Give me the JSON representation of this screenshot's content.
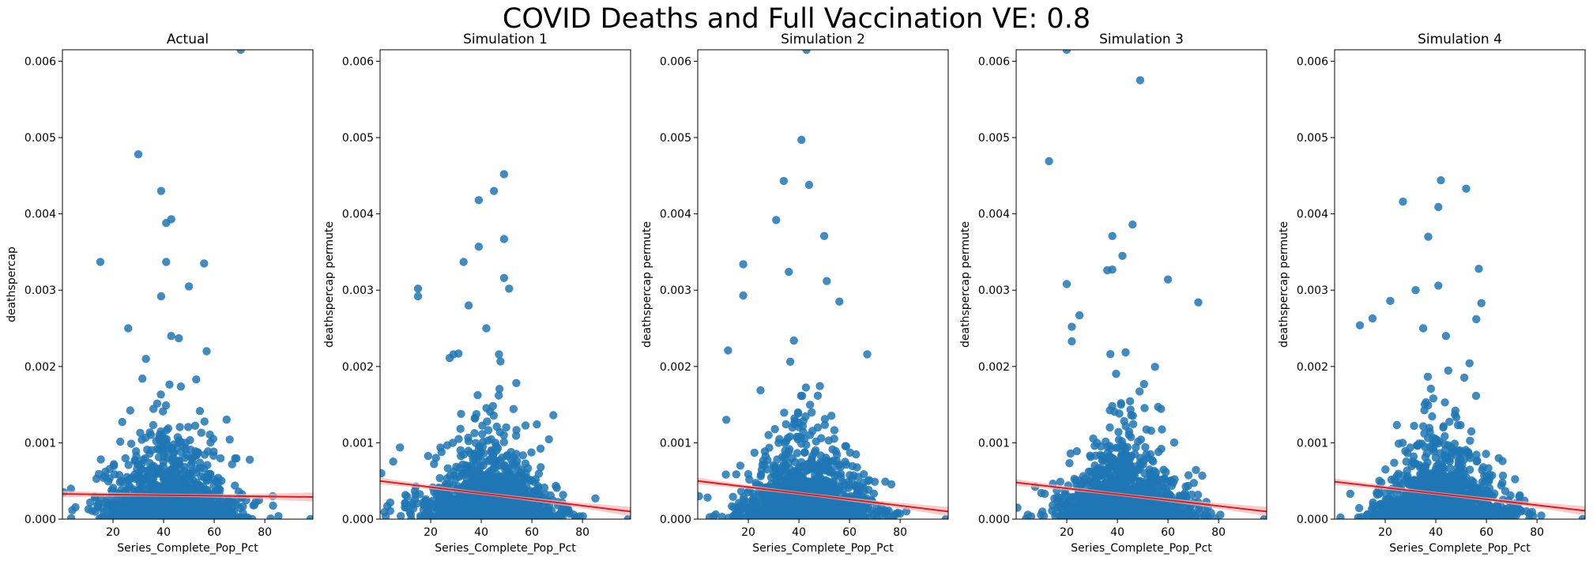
{
  "suptitle": "COVID Deaths and Full Vaccination VE: 0.8",
  "colors": {
    "points": "#1f77b4",
    "regression": "#e31a1c",
    "ci_band": "#f4b6b6"
  },
  "chart_data": [
    {
      "type": "scatter",
      "title": "Actual",
      "xlabel": "Series_Complete_Pop_Pct",
      "ylabel": "deathspercap",
      "xlim": [
        0,
        99
      ],
      "ylim": [
        0,
        0.00615
      ],
      "xticks": [
        20,
        40,
        60,
        80
      ],
      "yticks": [
        "0.000",
        "0.001",
        "0.002",
        "0.003",
        "0.004",
        "0.005",
        "0.006"
      ],
      "regression": {
        "x": [
          0,
          99
        ],
        "y": [
          0.00033,
          0.00029
        ]
      },
      "outliers": [
        [
          70.5,
          0.00615
        ],
        [
          30,
          0.00478
        ],
        [
          39,
          0.0043
        ],
        [
          43,
          0.00393
        ],
        [
          41,
          0.00388
        ],
        [
          41,
          0.00337
        ],
        [
          15,
          0.00337
        ],
        [
          56,
          0.00335
        ],
        [
          50,
          0.00305
        ],
        [
          39,
          0.00292
        ],
        [
          26,
          0.0025
        ],
        [
          43,
          0.0024
        ],
        [
          46,
          0.00237
        ],
        [
          57,
          0.0022
        ],
        [
          33,
          0.0021
        ],
        [
          0.5,
          0.00035
        ],
        [
          98,
          0.0
        ]
      ],
      "cloud": {
        "x_mean": 43,
        "x_sd": 13,
        "y_scale": 0.00038,
        "n": 1150,
        "seed": 11
      }
    },
    {
      "type": "scatter",
      "title": "Simulation 1",
      "xlabel": "Series_Complete_Pop_Pct",
      "ylabel": "deathspercap permute",
      "xlim": [
        0,
        99
      ],
      "ylim": [
        0,
        0.00615
      ],
      "xticks": [
        20,
        40,
        60,
        80
      ],
      "yticks": [
        "0.000",
        "0.001",
        "0.002",
        "0.003",
        "0.004",
        "0.005",
        "0.006"
      ],
      "regression": {
        "x": [
          0,
          99
        ],
        "y": [
          0.0005,
          0.0001
        ]
      },
      "outliers": [
        [
          49,
          0.00452
        ],
        [
          45,
          0.0043
        ],
        [
          39,
          0.00418
        ],
        [
          49,
          0.00367
        ],
        [
          39,
          0.00357
        ],
        [
          33,
          0.00337
        ],
        [
          15,
          0.00302
        ],
        [
          15,
          0.00292
        ],
        [
          49,
          0.00316
        ],
        [
          51,
          0.00302
        ],
        [
          35,
          0.0028
        ],
        [
          42,
          0.0025
        ],
        [
          29,
          0.00216
        ],
        [
          47,
          0.00216
        ],
        [
          31,
          0.00217
        ],
        [
          0.5,
          0.0006
        ],
        [
          98,
          0.0
        ]
      ],
      "cloud": {
        "x_mean": 43,
        "x_sd": 13,
        "y_scale": 0.00038,
        "n": 1150,
        "seed": 23
      }
    },
    {
      "type": "scatter",
      "title": "Simulation 2",
      "xlabel": "Series_Complete_Pop_Pct",
      "ylabel": "deathspercap permute",
      "xlim": [
        0,
        99
      ],
      "ylim": [
        0,
        0.00615
      ],
      "xticks": [
        20,
        40,
        60,
        80
      ],
      "yticks": [
        "0.000",
        "0.001",
        "0.002",
        "0.003",
        "0.004",
        "0.005",
        "0.006"
      ],
      "regression": {
        "x": [
          0,
          99
        ],
        "y": [
          0.0005,
          0.0001
        ]
      },
      "outliers": [
        [
          43,
          0.00615
        ],
        [
          41,
          0.00497
        ],
        [
          34,
          0.00443
        ],
        [
          44,
          0.00438
        ],
        [
          31,
          0.00392
        ],
        [
          50,
          0.00371
        ],
        [
          36,
          0.00324
        ],
        [
          18,
          0.00334
        ],
        [
          51,
          0.00312
        ],
        [
          18,
          0.00293
        ],
        [
          56,
          0.00285
        ],
        [
          38,
          0.00234
        ],
        [
          12,
          0.00221
        ],
        [
          67,
          0.00216
        ],
        [
          0.5,
          0.0003
        ],
        [
          98,
          0.0
        ]
      ],
      "cloud": {
        "x_mean": 43,
        "x_sd": 13,
        "y_scale": 0.00038,
        "n": 1150,
        "seed": 37
      }
    },
    {
      "type": "scatter",
      "title": "Simulation 3",
      "xlabel": "Series_Complete_Pop_Pct",
      "ylabel": "deathspercap permute",
      "xlim": [
        0,
        99
      ],
      "ylim": [
        0,
        0.00615
      ],
      "xticks": [
        20,
        40,
        60,
        80
      ],
      "yticks": [
        "0.000",
        "0.001",
        "0.002",
        "0.003",
        "0.004",
        "0.005",
        "0.006"
      ],
      "regression": {
        "x": [
          0,
          99
        ],
        "y": [
          0.00048,
          0.0001
        ]
      },
      "outliers": [
        [
          20,
          0.00615
        ],
        [
          49,
          0.00575
        ],
        [
          13,
          0.00469
        ],
        [
          46,
          0.00386
        ],
        [
          42,
          0.00345
        ],
        [
          38,
          0.00371
        ],
        [
          38,
          0.00327
        ],
        [
          36,
          0.00326
        ],
        [
          60,
          0.00314
        ],
        [
          20,
          0.00308
        ],
        [
          72,
          0.00284
        ],
        [
          25,
          0.00267
        ],
        [
          22,
          0.00252
        ],
        [
          22,
          0.00233
        ],
        [
          0.5,
          0.00015
        ],
        [
          98,
          0.0
        ]
      ],
      "cloud": {
        "x_mean": 43,
        "x_sd": 13,
        "y_scale": 0.00038,
        "n": 1150,
        "seed": 53
      }
    },
    {
      "type": "scatter",
      "title": "Simulation 4",
      "xlabel": "Series_Complete_Pop_Pct",
      "ylabel": "deathspercap permute",
      "xlim": [
        0,
        99
      ],
      "ylim": [
        0,
        0.00615
      ],
      "xticks": [
        20,
        40,
        60,
        80
      ],
      "yticks": [
        "0.000",
        "0.001",
        "0.002",
        "0.003",
        "0.004",
        "0.005",
        "0.006"
      ],
      "regression": {
        "x": [
          0,
          99
        ],
        "y": [
          0.00049,
          0.00011
        ]
      },
      "outliers": [
        [
          42,
          0.00444
        ],
        [
          52,
          0.00433
        ],
        [
          27,
          0.00416
        ],
        [
          41,
          0.00409
        ],
        [
          37,
          0.0037
        ],
        [
          57,
          0.00328
        ],
        [
          41,
          0.00306
        ],
        [
          32,
          0.003
        ],
        [
          22,
          0.00286
        ],
        [
          58,
          0.00283
        ],
        [
          15,
          0.00263
        ],
        [
          56,
          0.00262
        ],
        [
          10,
          0.00254
        ],
        [
          35,
          0.0025
        ],
        [
          44,
          0.0024
        ],
        [
          98,
          0.0
        ]
      ],
      "cloud": {
        "x_mean": 43,
        "x_sd": 13,
        "y_scale": 0.00038,
        "n": 1150,
        "seed": 71
      }
    }
  ]
}
